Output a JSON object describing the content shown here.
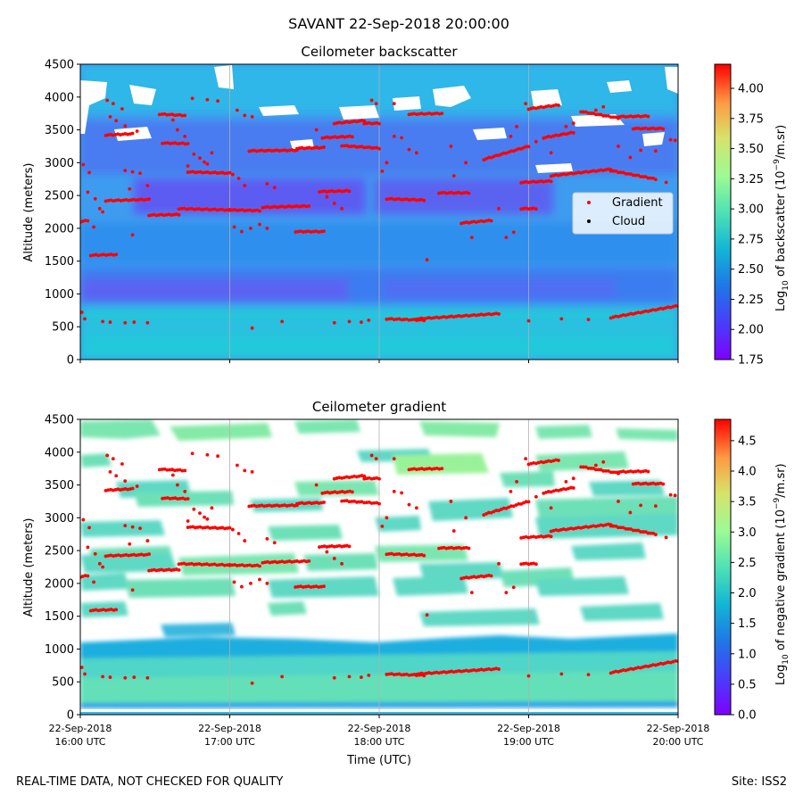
{
  "figure": {
    "suptitle": "SAVANT 22-Sep-2018 20:00:00",
    "footer_left": "REAL-TIME DATA, NOT CHECKED FOR QUALITY",
    "footer_right": "Site: ISS2"
  },
  "chart_data": [
    {
      "type": "heatmap",
      "title": "Ceilometer backscatter",
      "xlabel": "",
      "ylabel": "Altitude (meters)",
      "ylim": [
        0,
        4500
      ],
      "yticks": [
        "0",
        "500",
        "1000",
        "1500",
        "2000",
        "2500",
        "3000",
        "3500",
        "4000",
        "4500"
      ],
      "xlim": [
        "22-Sep-2018 16:00 UTC",
        "22-Sep-2018 20:00 UTC"
      ],
      "x_ticklabels_shown": false,
      "grid": "vertical lines at hourly ticks",
      "colormap": "rainbow",
      "colorbar": {
        "label": "Log10 of backscatter (10^-9/m.sr)",
        "label_main": "Log",
        "label_sub": "10",
        "label_mid": " of backscatter (10",
        "label_sup": "−9",
        "label_end": "/m.sr)",
        "range": [
          1.75,
          4.2
        ],
        "ticks": [
          "1.75",
          "2.00",
          "2.25",
          "2.50",
          "2.75",
          "3.00",
          "3.25",
          "3.50",
          "3.75",
          "4.00"
        ]
      },
      "legend": {
        "placement": "center-right",
        "entries": [
          {
            "label": "Gradient",
            "color": "#ff0000",
            "marker": "dot"
          },
          {
            "label": "Cloud",
            "color": "#000000",
            "marker": "dot"
          }
        ]
      },
      "background_field": {
        "dominant_value_range": [
          2.0,
          2.6
        ],
        "lowest_layer": {
          "altitude": [
            0,
            800
          ],
          "approx_value": 2.55
        },
        "mid_layer": {
          "altitude": [
            800,
            1300
          ],
          "approx_value": 2.2
        },
        "upper_noise": {
          "altitude": [
            3500,
            4500
          ],
          "approx_value": 2.3
        },
        "white_gaps_note": "missing data patches near 3500-4500 m"
      }
    },
    {
      "type": "heatmap",
      "title": "Ceilometer gradient",
      "xlabel": "Time (UTC)",
      "ylabel": "Altitude (meters)",
      "ylim": [
        0,
        4500
      ],
      "yticks": [
        "0",
        "500",
        "1000",
        "1500",
        "2000",
        "2500",
        "3000",
        "3500",
        "4000",
        "4500"
      ],
      "xticks": [
        {
          "line1": "22-Sep-2018",
          "line2": "16:00 UTC"
        },
        {
          "line1": "22-Sep-2018",
          "line2": "17:00 UTC"
        },
        {
          "line1": "22-Sep-2018",
          "line2": "18:00 UTC"
        },
        {
          "line1": "22-Sep-2018",
          "line2": "19:00 UTC"
        },
        {
          "line1": "22-Sep-2018",
          "line2": "20:00 UTC"
        }
      ],
      "grid": "vertical lines at hourly ticks",
      "colormap": "rainbow",
      "colorbar": {
        "label": "Log10 of negative gradient (10^-9/m.sr)",
        "label_main": "Log",
        "label_sub": "10",
        "label_mid": " of negative gradient (10",
        "label_sup": "−9",
        "label_end": "/m.sr)",
        "range": [
          0.0,
          4.85
        ],
        "ticks": [
          "0.0",
          "0.5",
          "1.0",
          "1.5",
          "2.0",
          "2.5",
          "3.0",
          "3.5",
          "4.0",
          "4.5"
        ]
      },
      "background_field": {
        "dominant_value_range": [
          1.2,
          2.4
        ],
        "note": "white (masked) regions where gradient is non-negative"
      }
    }
  ],
  "gradient_points": {
    "units": {
      "x": "hours since 16:00 UTC",
      "y": "meters"
    },
    "segments": [
      [
        0.0,
        0.05,
        2100,
        2120
      ],
      [
        0.07,
        0.24,
        1590,
        1600
      ],
      [
        0.17,
        0.35,
        3420,
        3440
      ],
      [
        0.17,
        0.46,
        2420,
        2440
      ],
      [
        0.46,
        0.66,
        2200,
        2210
      ],
      [
        0.66,
        1.0,
        2300,
        2280
      ],
      [
        0.53,
        0.7,
        3740,
        3720
      ],
      [
        0.55,
        0.72,
        3300,
        3290
      ],
      [
        0.72,
        1.0,
        2860,
        2840
      ],
      [
        1.0,
        1.2,
        2280,
        2270
      ],
      [
        1.13,
        1.45,
        3180,
        3190
      ],
      [
        1.22,
        1.53,
        2320,
        2340
      ],
      [
        1.45,
        1.63,
        3220,
        3230
      ],
      [
        1.44,
        1.63,
        1950,
        1950
      ],
      [
        1.6,
        1.8,
        2560,
        2570
      ],
      [
        1.7,
        1.9,
        3600,
        3640
      ],
      [
        1.62,
        1.82,
        3380,
        3400
      ],
      [
        1.75,
        2.0,
        3260,
        3220
      ],
      [
        1.9,
        2.0,
        3600,
        3600
      ],
      [
        2.05,
        2.3,
        2450,
        2430
      ],
      [
        2.2,
        2.42,
        3740,
        3750
      ],
      [
        2.4,
        2.6,
        2540,
        2540
      ],
      [
        2.55,
        2.75,
        2080,
        2120
      ],
      [
        2.7,
        3.0,
        3050,
        3250
      ],
      [
        2.95,
        3.15,
        2700,
        2720
      ],
      [
        3.0,
        3.2,
        3820,
        3880
      ],
      [
        3.15,
        3.55,
        2800,
        2900
      ],
      [
        3.35,
        3.6,
        3780,
        3680
      ],
      [
        3.55,
        3.85,
        2880,
        2750
      ],
      [
        3.6,
        3.8,
        3700,
        3710
      ],
      [
        3.7,
        3.9,
        3520,
        3520
      ],
      [
        3.1,
        3.3,
        3380,
        3460
      ],
      [
        2.25,
        2.8,
        620,
        700
      ],
      [
        2.05,
        2.3,
        620,
        600
      ],
      [
        3.55,
        4.0,
        640,
        820
      ],
      [
        2.95,
        3.05,
        2300,
        2300
      ]
    ],
    "scatter": [
      [
        0.02,
        2970
      ],
      [
        0.06,
        2850
      ],
      [
        0.05,
        2550
      ],
      [
        0.1,
        2450
      ],
      [
        0.13,
        2300
      ],
      [
        0.15,
        2250
      ],
      [
        0.09,
        2020
      ],
      [
        0.01,
        720
      ],
      [
        0.03,
        620
      ],
      [
        0.15,
        580
      ],
      [
        0.2,
        570
      ],
      [
        0.3,
        560
      ],
      [
        0.36,
        570
      ],
      [
        0.45,
        560
      ],
      [
        0.18,
        3950
      ],
      [
        0.22,
        3900
      ],
      [
        0.28,
        3820
      ],
      [
        0.2,
        3700
      ],
      [
        0.24,
        3640
      ],
      [
        0.3,
        3560
      ],
      [
        0.38,
        3480
      ],
      [
        0.3,
        2880
      ],
      [
        0.35,
        2860
      ],
      [
        0.4,
        2840
      ],
      [
        0.33,
        2600
      ],
      [
        0.45,
        2650
      ],
      [
        0.35,
        1900
      ],
      [
        0.62,
        3650
      ],
      [
        0.65,
        3500
      ],
      [
        0.7,
        3400
      ],
      [
        0.76,
        3130
      ],
      [
        0.8,
        3070
      ],
      [
        0.83,
        3010
      ],
      [
        0.85,
        2980
      ],
      [
        0.88,
        3150
      ],
      [
        0.95,
        2850
      ],
      [
        1.02,
        2820
      ],
      [
        1.06,
        2760
      ],
      [
        1.1,
        2650
      ],
      [
        0.72,
        2950
      ],
      [
        0.75,
        3980
      ],
      [
        0.85,
        3960
      ],
      [
        0.92,
        3940
      ],
      [
        1.05,
        3800
      ],
      [
        1.1,
        3720
      ],
      [
        1.15,
        3700
      ],
      [
        1.03,
        2020
      ],
      [
        1.08,
        1950
      ],
      [
        1.14,
        2000
      ],
      [
        1.2,
        2060
      ],
      [
        1.25,
        2000
      ],
      [
        1.15,
        480
      ],
      [
        1.35,
        580
      ],
      [
        1.7,
        560
      ],
      [
        1.8,
        580
      ],
      [
        1.88,
        570
      ],
      [
        1.93,
        600
      ],
      [
        1.25,
        2680
      ],
      [
        1.3,
        2620
      ],
      [
        1.58,
        3500
      ],
      [
        1.65,
        2480
      ],
      [
        1.7,
        2380
      ],
      [
        1.75,
        2300
      ],
      [
        1.95,
        3950
      ],
      [
        1.98,
        3900
      ],
      [
        2.02,
        2870
      ],
      [
        2.05,
        3000
      ],
      [
        2.1,
        3400
      ],
      [
        2.15,
        3380
      ],
      [
        2.1,
        3900
      ],
      [
        2.2,
        3200
      ],
      [
        2.25,
        3150
      ],
      [
        2.32,
        1520
      ],
      [
        2.48,
        3250
      ],
      [
        2.5,
        2800
      ],
      [
        2.58,
        3000
      ],
      [
        2.8,
        2300
      ],
      [
        2.85,
        1860
      ],
      [
        2.88,
        3400
      ],
      [
        2.92,
        3550
      ],
      [
        2.98,
        3900
      ],
      [
        3.0,
        590
      ],
      [
        3.22,
        620
      ],
      [
        3.4,
        610
      ],
      [
        3.05,
        3320
      ],
      [
        3.15,
        3150
      ],
      [
        3.25,
        3550
      ],
      [
        3.3,
        3600
      ],
      [
        3.45,
        3800
      ],
      [
        3.5,
        3850
      ],
      [
        3.6,
        3250
      ],
      [
        3.68,
        3080
      ],
      [
        3.75,
        3190
      ],
      [
        3.85,
        3180
      ],
      [
        3.92,
        2700
      ],
      [
        3.95,
        3350
      ],
      [
        3.98,
        3340
      ],
      [
        2.62,
        1860
      ],
      [
        2.9,
        1940
      ]
    ]
  }
}
